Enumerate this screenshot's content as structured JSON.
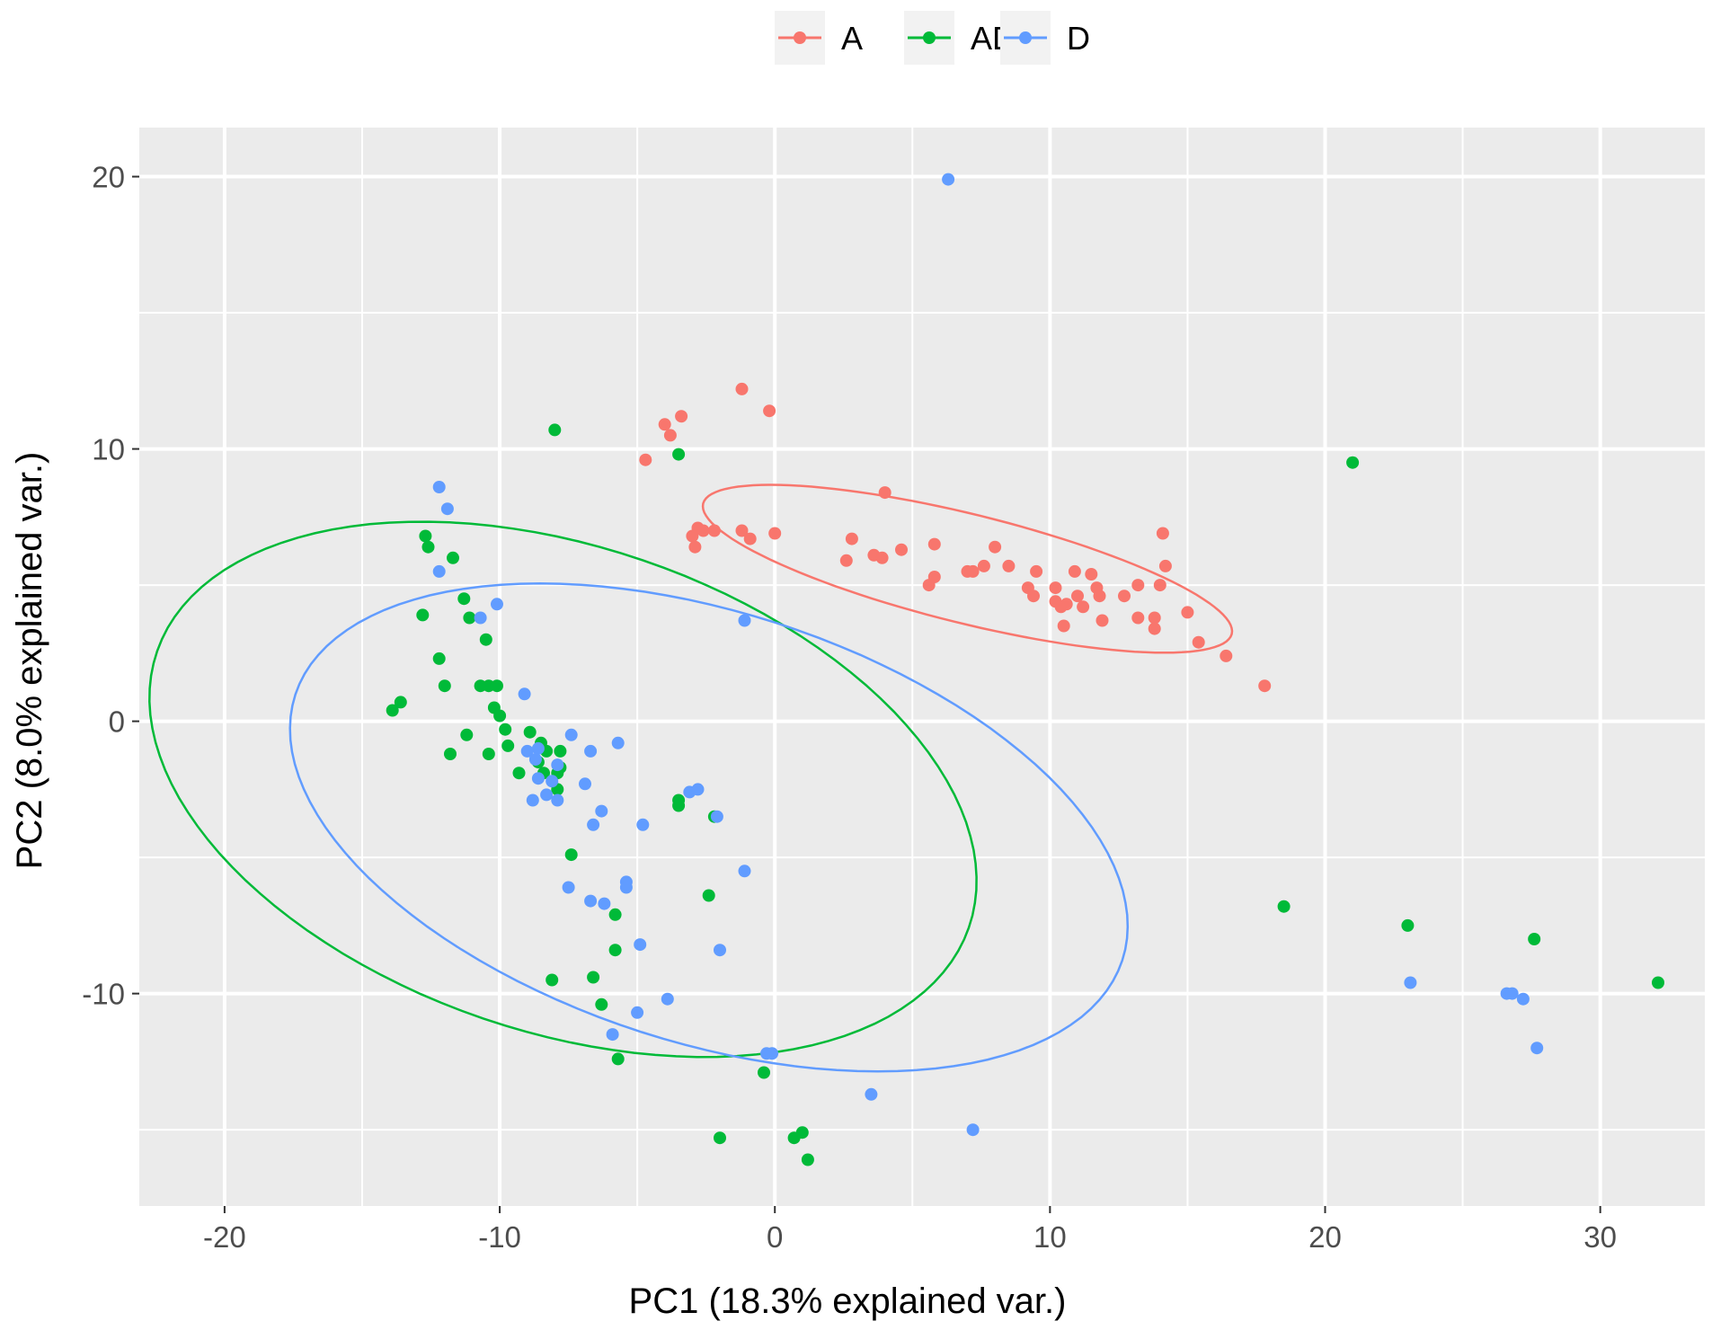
{
  "chart_data": {
    "type": "scatter",
    "title": "",
    "xlabel": "PC1 (18.3% explained var.)",
    "ylabel": "PC2 (8.0% explained var.)",
    "xlim": [
      -23.1,
      33.8
    ],
    "ylim": [
      -17.8,
      21.8
    ],
    "xticks": [
      -20,
      -10,
      0,
      10,
      20,
      30
    ],
    "xtick_labels": [
      "-20",
      "-10",
      "0",
      "10",
      "20",
      "30"
    ],
    "yticks": [
      -10,
      0,
      10,
      20
    ],
    "ytick_labels": [
      "-10",
      "0",
      "10",
      "20"
    ],
    "grid": true,
    "legend_position": "top",
    "colors": {
      "A": "#F8766D",
      "AD": "#00BA38",
      "D": "#619CFF",
      "panel": "#EBEBEB",
      "grid": "#FFFFFF",
      "text": "#4D4D4D"
    },
    "series": [
      {
        "name": "A",
        "ellipse": {
          "cx": 7.0,
          "cy": 5.6,
          "rx": 9.9,
          "ry": 2.0,
          "angle_deg": -14
        },
        "points": [
          [
            -1.2,
            12.2
          ],
          [
            -0.2,
            11.4
          ],
          [
            -3.4,
            11.2
          ],
          [
            -4.0,
            10.9
          ],
          [
            -3.8,
            10.5
          ],
          [
            -4.7,
            9.6
          ],
          [
            4.0,
            8.4
          ],
          [
            -2.8,
            7.1
          ],
          [
            -2.6,
            7.0
          ],
          [
            -2.2,
            7.0
          ],
          [
            -1.2,
            7.0
          ],
          [
            -0.9,
            6.7
          ],
          [
            -3.0,
            6.8
          ],
          [
            0.0,
            6.9
          ],
          [
            -2.9,
            6.4
          ],
          [
            2.8,
            6.7
          ],
          [
            2.6,
            5.9
          ],
          [
            3.6,
            6.1
          ],
          [
            3.9,
            6.0
          ],
          [
            4.6,
            6.3
          ],
          [
            5.8,
            6.5
          ],
          [
            5.8,
            5.3
          ],
          [
            5.6,
            5.0
          ],
          [
            7.0,
            5.5
          ],
          [
            7.2,
            5.5
          ],
          [
            7.6,
            5.7
          ],
          [
            8.0,
            6.4
          ],
          [
            8.5,
            5.7
          ],
          [
            9.2,
            4.9
          ],
          [
            9.4,
            4.6
          ],
          [
            9.5,
            5.5
          ],
          [
            10.2,
            4.9
          ],
          [
            10.2,
            4.4
          ],
          [
            10.4,
            4.2
          ],
          [
            10.5,
            3.5
          ],
          [
            10.6,
            4.3
          ],
          [
            10.9,
            5.5
          ],
          [
            11.0,
            4.6
          ],
          [
            11.2,
            4.2
          ],
          [
            11.5,
            5.4
          ],
          [
            11.7,
            4.9
          ],
          [
            11.8,
            4.6
          ],
          [
            11.9,
            3.7
          ],
          [
            12.7,
            4.6
          ],
          [
            13.2,
            5.0
          ],
          [
            13.2,
            3.8
          ],
          [
            13.8,
            3.8
          ],
          [
            13.8,
            3.4
          ],
          [
            14.0,
            5.0
          ],
          [
            14.1,
            6.9
          ],
          [
            14.2,
            5.7
          ],
          [
            15.0,
            4.0
          ],
          [
            15.4,
            2.9
          ],
          [
            16.4,
            2.4
          ],
          [
            17.8,
            1.3
          ]
        ]
      },
      {
        "name": "AD",
        "ellipse": {
          "cx": -7.7,
          "cy": -2.5,
          "rx": 15.6,
          "ry": 8.9,
          "angle_deg": -19
        },
        "points": [
          [
            -8.0,
            10.7
          ],
          [
            -3.5,
            9.8
          ],
          [
            21.0,
            9.5
          ],
          [
            -12.7,
            6.8
          ],
          [
            -12.6,
            6.4
          ],
          [
            -11.7,
            6.0
          ],
          [
            -11.3,
            4.5
          ],
          [
            -11.1,
            3.8
          ],
          [
            -12.8,
            3.9
          ],
          [
            -10.5,
            3.0
          ],
          [
            -12.2,
            2.3
          ],
          [
            -12.0,
            1.3
          ],
          [
            -10.7,
            1.3
          ],
          [
            -10.4,
            1.3
          ],
          [
            -10.1,
            1.3
          ],
          [
            -13.6,
            0.7
          ],
          [
            -13.9,
            0.4
          ],
          [
            -10.2,
            0.5
          ],
          [
            -10.0,
            0.2
          ],
          [
            -9.8,
            -0.3
          ],
          [
            -11.2,
            -0.5
          ],
          [
            -8.9,
            -0.4
          ],
          [
            -8.5,
            -0.8
          ],
          [
            -8.3,
            -1.1
          ],
          [
            -7.8,
            -1.1
          ],
          [
            -9.7,
            -0.9
          ],
          [
            -11.8,
            -1.2
          ],
          [
            -10.4,
            -1.2
          ],
          [
            -8.6,
            -1.5
          ],
          [
            -7.8,
            -1.7
          ],
          [
            -8.4,
            -1.9
          ],
          [
            -7.9,
            -1.9
          ],
          [
            -9.3,
            -1.9
          ],
          [
            -7.9,
            -2.5
          ],
          [
            -3.5,
            -2.9
          ],
          [
            -3.5,
            -3.1
          ],
          [
            -2.2,
            -3.5
          ],
          [
            -7.4,
            -4.9
          ],
          [
            -2.4,
            -6.4
          ],
          [
            -5.8,
            -7.1
          ],
          [
            -5.8,
            -8.4
          ],
          [
            -6.6,
            -9.4
          ],
          [
            -8.1,
            -9.5
          ],
          [
            -6.3,
            -10.4
          ],
          [
            18.5,
            -6.8
          ],
          [
            23.0,
            -7.5
          ],
          [
            27.6,
            -8.0
          ],
          [
            32.1,
            -9.6
          ],
          [
            -5.7,
            -12.4
          ],
          [
            -0.4,
            -12.9
          ],
          [
            -2.0,
            -15.3
          ],
          [
            0.7,
            -15.3
          ],
          [
            1.0,
            -15.1
          ],
          [
            1.2,
            -16.1
          ]
        ]
      },
      {
        "name": "D",
        "ellipse": {
          "cx": -2.4,
          "cy": -3.9,
          "rx": 15.8,
          "ry": 7.9,
          "angle_deg": -18
        },
        "points": [
          [
            6.3,
            19.9
          ],
          [
            -12.2,
            8.6
          ],
          [
            -11.9,
            7.8
          ],
          [
            -12.2,
            5.5
          ],
          [
            -10.1,
            4.3
          ],
          [
            -10.7,
            3.8
          ],
          [
            -1.1,
            3.7
          ],
          [
            -9.1,
            1.0
          ],
          [
            -7.4,
            -0.5
          ],
          [
            -5.7,
            -0.8
          ],
          [
            -8.6,
            -1.0
          ],
          [
            -6.7,
            -1.1
          ],
          [
            -9.0,
            -1.1
          ],
          [
            -8.7,
            -1.4
          ],
          [
            -7.9,
            -1.6
          ],
          [
            -8.6,
            -2.1
          ],
          [
            -8.1,
            -2.2
          ],
          [
            -6.9,
            -2.3
          ],
          [
            -8.3,
            -2.7
          ],
          [
            -8.8,
            -2.9
          ],
          [
            -7.9,
            -2.9
          ],
          [
            -3.1,
            -2.6
          ],
          [
            -2.8,
            -2.5
          ],
          [
            -6.3,
            -3.3
          ],
          [
            -2.1,
            -3.5
          ],
          [
            -6.6,
            -3.8
          ],
          [
            -4.8,
            -3.8
          ],
          [
            -1.1,
            -5.5
          ],
          [
            -5.4,
            -5.9
          ],
          [
            -5.4,
            -6.1
          ],
          [
            -7.5,
            -6.1
          ],
          [
            -6.7,
            -6.6
          ],
          [
            -6.2,
            -6.7
          ],
          [
            -4.9,
            -8.2
          ],
          [
            -2.0,
            -8.4
          ],
          [
            -3.9,
            -10.2
          ],
          [
            -5.0,
            -10.7
          ],
          [
            -5.9,
            -11.5
          ],
          [
            -0.3,
            -12.2
          ],
          [
            -0.1,
            -12.2
          ],
          [
            3.5,
            -13.7
          ],
          [
            7.2,
            -15.0
          ],
          [
            23.1,
            -9.6
          ],
          [
            26.6,
            -10.0
          ],
          [
            26.8,
            -10.0
          ],
          [
            27.2,
            -10.2
          ],
          [
            27.7,
            -12.0
          ]
        ]
      }
    ]
  }
}
